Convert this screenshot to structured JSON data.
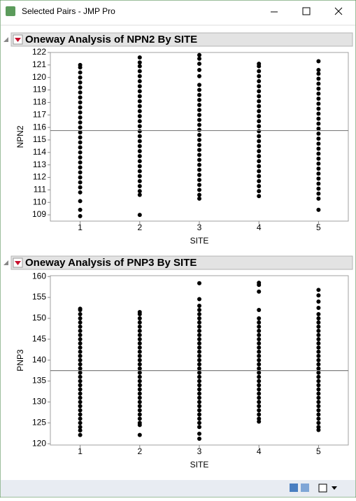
{
  "window": {
    "title": "Selected Pairs - JMP Pro"
  },
  "chart_data": [
    {
      "type": "strip",
      "title": "Oneway Analysis of NPN2 By SITE",
      "x_label": "SITE",
      "y_label": "NPN2",
      "categories": [
        "1",
        "2",
        "3",
        "4",
        "5"
      ],
      "color": "#000000",
      "mean": 115.75,
      "ylim": [
        108.5,
        122
      ],
      "yticks": [
        109,
        110,
        111,
        112,
        113,
        114,
        115,
        116,
        117,
        118,
        119,
        120,
        121,
        122
      ],
      "values": [
        [
          108.9,
          109.4,
          110.1,
          110.8,
          111.2,
          111.6,
          112.0,
          112.4,
          112.8,
          113.2,
          113.6,
          114.0,
          114.4,
          114.8,
          115.2,
          115.6,
          116.0,
          116.4,
          116.8,
          117.2,
          117.6,
          118.0,
          118.4,
          118.8,
          119.2,
          119.6,
          120.0,
          120.4,
          120.8,
          121.0
        ],
        [
          109.0,
          110.6,
          110.9,
          111.3,
          111.7,
          112.1,
          112.5,
          112.9,
          113.3,
          113.7,
          114.1,
          114.5,
          114.9,
          115.3,
          115.7,
          116.1,
          116.5,
          116.9,
          117.3,
          117.7,
          118.1,
          118.5,
          118.9,
          119.3,
          119.7,
          120.1,
          120.5,
          120.9,
          121.2,
          121.6
        ],
        [
          110.3,
          110.6,
          111.0,
          111.4,
          111.8,
          112.2,
          112.6,
          113.0,
          113.4,
          113.8,
          114.2,
          114.6,
          115.0,
          115.4,
          115.8,
          116.2,
          116.6,
          117.0,
          117.4,
          117.8,
          118.2,
          118.6,
          119.0,
          119.4,
          120.1,
          120.6,
          121.1,
          121.5,
          121.8
        ],
        [
          110.5,
          110.9,
          111.3,
          111.7,
          112.1,
          112.5,
          112.9,
          113.3,
          113.7,
          114.1,
          114.5,
          114.9,
          115.3,
          115.7,
          116.1,
          116.5,
          116.9,
          117.3,
          117.7,
          118.1,
          118.5,
          118.9,
          119.3,
          119.7,
          120.1,
          120.5,
          120.9,
          121.1
        ],
        [
          109.4,
          110.3,
          110.7,
          111.1,
          111.5,
          111.9,
          112.3,
          112.7,
          113.1,
          113.5,
          113.9,
          114.3,
          114.7,
          115.1,
          115.5,
          115.9,
          116.3,
          116.7,
          117.1,
          117.5,
          117.9,
          118.3,
          118.7,
          119.1,
          119.5,
          119.9,
          120.3,
          120.6,
          121.3
        ]
      ]
    },
    {
      "type": "strip",
      "title": "Oneway Analysis of PNP3 By SITE",
      "x_label": "SITE",
      "y_label": "PNP3",
      "categories": [
        "1",
        "2",
        "3",
        "4",
        "5"
      ],
      "color": "#000000",
      "mean": 137.5,
      "ylim": [
        119.7,
        160.2
      ],
      "yticks": [
        120,
        125,
        130,
        135,
        140,
        145,
        150,
        155,
        160
      ],
      "values": [
        [
          122.1,
          123.2,
          124,
          125,
          126,
          127,
          128,
          129,
          130,
          131,
          132,
          133,
          134,
          135,
          136,
          137,
          138,
          139,
          140,
          141,
          142,
          143,
          144,
          145,
          146,
          147,
          148,
          149,
          150,
          151,
          152,
          152.3
        ],
        [
          122.1,
          124.5,
          125,
          126,
          127,
          128,
          129,
          130,
          131,
          132,
          133,
          134,
          135,
          136,
          137,
          138,
          139,
          140,
          141,
          142,
          143,
          144,
          145,
          146,
          147,
          148,
          149,
          150,
          151,
          151.5
        ],
        [
          121.2,
          122.4,
          124,
          125,
          126,
          127,
          128,
          129,
          130,
          131,
          132,
          133,
          134,
          135,
          136,
          137,
          138,
          139,
          140,
          141,
          142,
          143,
          144,
          145,
          146,
          147,
          148,
          149,
          150,
          151,
          152,
          153,
          154.6,
          158.4
        ],
        [
          125.3,
          126,
          127,
          128,
          129,
          130,
          131,
          132,
          133,
          134,
          135,
          136,
          137,
          138,
          139,
          140,
          141,
          142,
          143,
          144,
          145,
          146,
          147,
          148,
          149,
          150,
          152,
          156.4,
          158,
          158.5
        ],
        [
          123.3,
          124,
          125,
          126,
          127,
          128,
          129,
          130,
          131,
          132,
          133,
          134,
          135,
          136,
          137,
          138,
          139,
          140,
          141,
          142,
          143,
          144,
          145,
          146,
          147,
          148,
          149,
          150,
          151,
          152.5,
          154,
          155.5,
          156.8
        ]
      ]
    }
  ]
}
